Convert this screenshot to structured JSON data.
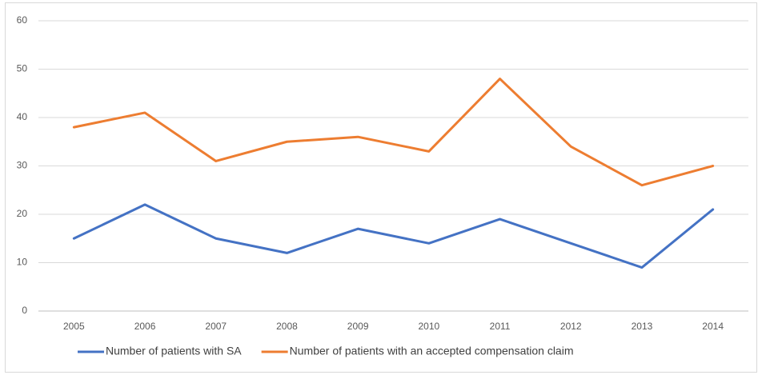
{
  "chart_data": {
    "type": "line",
    "categories": [
      "2005",
      "2006",
      "2007",
      "2008",
      "2009",
      "2010",
      "2011",
      "2012",
      "2013",
      "2014"
    ],
    "series": [
      {
        "name": "Number of patients with SA",
        "color": "#4472c4",
        "values": [
          15,
          22,
          15,
          12,
          17,
          14,
          19,
          14,
          9,
          21
        ]
      },
      {
        "name": "Number of patients with an accepted compensation claim",
        "color": "#ed7d31",
        "values": [
          38,
          41,
          31,
          35,
          36,
          33,
          48,
          34,
          26,
          30
        ]
      }
    ],
    "ylim": [
      0,
      60
    ],
    "yticks": [
      0,
      10,
      20,
      30,
      40,
      50,
      60
    ],
    "grid": true,
    "legend": "bottom"
  }
}
